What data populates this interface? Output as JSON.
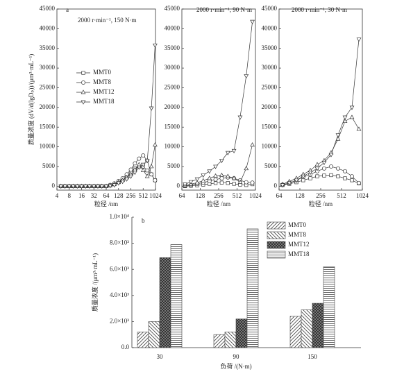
{
  "chart_data": [
    {
      "type": "line",
      "label": "a",
      "title": "2000 r·min⁻¹, 150 N·m",
      "ylabel": "质量浓度 (dV/d(lgDₚ))/(μm³·mL⁻¹)",
      "xlabel": "粒径 /nm",
      "xscale": "log",
      "xlim": [
        4,
        1024
      ],
      "xticks": [
        4,
        8,
        16,
        32,
        64,
        128,
        256,
        512,
        1024
      ],
      "ylim": [
        -1000,
        45000
      ],
      "yticks": [
        0,
        5000,
        10000,
        15000,
        20000,
        25000,
        30000,
        35000,
        40000,
        45000
      ],
      "x": [
        5,
        6.3,
        8,
        10,
        12.6,
        16,
        20,
        25,
        32,
        40,
        50,
        64,
        80,
        101,
        128,
        161,
        203,
        256,
        322,
        406,
        512,
        645,
        813,
        1000
      ],
      "series": [
        {
          "name": "MMT0",
          "marker": "square",
          "color": "#333333",
          "values": [
            0,
            0,
            0,
            0,
            0,
            0,
            0,
            0,
            0,
            0,
            0,
            0,
            200,
            500,
            1000,
            1700,
            2500,
            3500,
            4500,
            5000,
            5000,
            4000,
            3000,
            1500
          ]
        },
        {
          "name": "MMT8",
          "marker": "circle",
          "color": "#333333",
          "values": [
            0,
            0,
            0,
            0,
            0,
            0,
            0,
            0,
            0,
            0,
            0,
            0,
            300,
            700,
            1300,
            2000,
            3000,
            4200,
            5800,
            7000,
            7800,
            6500,
            3000,
            1500
          ]
        },
        {
          "name": "MMT12",
          "marker": "triangle-up",
          "color": "#333333",
          "values": [
            0,
            0,
            0,
            0,
            0,
            0,
            0,
            0,
            0,
            0,
            0,
            0,
            200,
            500,
            1000,
            1500,
            2200,
            3000,
            4200,
            5500,
            4000,
            2500,
            5000,
            10500
          ]
        },
        {
          "name": "MMT18",
          "marker": "triangle-down",
          "color": "#333333",
          "values": [
            0,
            0,
            0,
            0,
            0,
            0,
            0,
            0,
            0,
            0,
            0,
            0,
            100,
            300,
            800,
            1200,
            1800,
            2500,
            3500,
            4800,
            5500,
            6500,
            19800,
            35800
          ]
        }
      ]
    },
    {
      "type": "line",
      "title": "2000 r·min⁻¹, 90 N·m",
      "xlabel": "粒径 /nm",
      "xscale": "log",
      "xlim": [
        64,
        1024
      ],
      "xticks": [
        64,
        128,
        256,
        512,
        1024
      ],
      "ylim": [
        -1000,
        45000
      ],
      "yticks": [
        0,
        5000,
        10000,
        15000,
        20000,
        25000,
        30000,
        35000,
        40000,
        45000
      ],
      "x": [
        72,
        90,
        114,
        143,
        181,
        228,
        287,
        362,
        456,
        575,
        724,
        912
      ],
      "series": [
        {
          "marker": "square",
          "color": "#333333",
          "values": [
            0,
            100,
            200,
            400,
            600,
            800,
            900,
            800,
            600,
            400,
            300,
            500
          ]
        },
        {
          "marker": "circle",
          "color": "#333333",
          "values": [
            100,
            300,
            600,
            900,
            1300,
            1700,
            2000,
            2200,
            2000,
            1500,
            1000,
            900
          ]
        },
        {
          "marker": "triangle-up",
          "color": "#333333",
          "values": [
            200,
            500,
            900,
            1400,
            2000,
            2600,
            2800,
            2500,
            2000,
            1000,
            4500,
            10500
          ]
        },
        {
          "marker": "triangle-down",
          "color": "#333333",
          "values": [
            500,
            1100,
            1800,
            2800,
            3800,
            5000,
            6500,
            8500,
            9000,
            17500,
            28000,
            41800
          ]
        }
      ]
    },
    {
      "type": "line",
      "title": "2000 r·min⁻¹, 30 N·m",
      "xlabel": "粒径 /nm",
      "xscale": "log",
      "xlim": [
        64,
        1024
      ],
      "xticks": [
        64,
        128,
        256,
        512,
        1024
      ],
      "ylim": [
        -1000,
        45000
      ],
      "yticks": [
        0,
        5000,
        10000,
        15000,
        20000,
        25000,
        30000,
        35000,
        40000,
        45000
      ],
      "x": [
        72,
        90,
        114,
        143,
        181,
        228,
        287,
        362,
        456,
        575,
        724,
        912
      ],
      "series": [
        {
          "marker": "square",
          "color": "#333333",
          "values": [
            300,
            600,
            1000,
            1500,
            2000,
            2500,
            2700,
            2800,
            2500,
            2000,
            1500,
            700
          ]
        },
        {
          "marker": "circle",
          "color": "#333333",
          "values": [
            400,
            800,
            1500,
            2300,
            3000,
            3800,
            4500,
            5000,
            4500,
            3800,
            2500,
            800
          ]
        },
        {
          "marker": "triangle-up",
          "color": "#333333",
          "values": [
            500,
            1200,
            2000,
            3000,
            4000,
            5500,
            6500,
            8500,
            12000,
            16500,
            17500,
            14500
          ]
        },
        {
          "marker": "triangle-down",
          "color": "#333333",
          "values": [
            300,
            800,
            1500,
            2500,
            3500,
            4500,
            6000,
            8000,
            13000,
            17500,
            20000,
            37300
          ]
        }
      ]
    },
    {
      "type": "bar",
      "label": "b",
      "ylabel": "质量浓度 /(μm³·mL⁻¹)",
      "xlabel": "负荷 /(N·m)",
      "categories": [
        "30",
        "90",
        "150"
      ],
      "ylim": [
        0,
        10000
      ],
      "yticks": [
        {
          "value": 0,
          "label": "0.0"
        },
        {
          "value": 2000,
          "label": "2.0×10³"
        },
        {
          "value": 4000,
          "label": "4.0×10³"
        },
        {
          "value": 6000,
          "label": "6.0×10³"
        },
        {
          "value": 8000,
          "label": "8.0×10³"
        },
        {
          "value": 10000,
          "label": "1.0×10⁴"
        }
      ],
      "series": [
        {
          "name": "MMT0",
          "hatch": "diagonal-right",
          "color": "#444444",
          "values": [
            1200,
            1000,
            2400
          ]
        },
        {
          "name": "MMT8",
          "hatch": "diagonal-left",
          "color": "#444444",
          "values": [
            2000,
            1200,
            2900
          ]
        },
        {
          "name": "MMT12",
          "hatch": "cross",
          "color": "#444444",
          "values": [
            6900,
            2200,
            3400
          ]
        },
        {
          "name": "MMT18",
          "hatch": "horizontal",
          "color": "#444444",
          "values": [
            7900,
            9100,
            6200
          ]
        }
      ]
    }
  ]
}
